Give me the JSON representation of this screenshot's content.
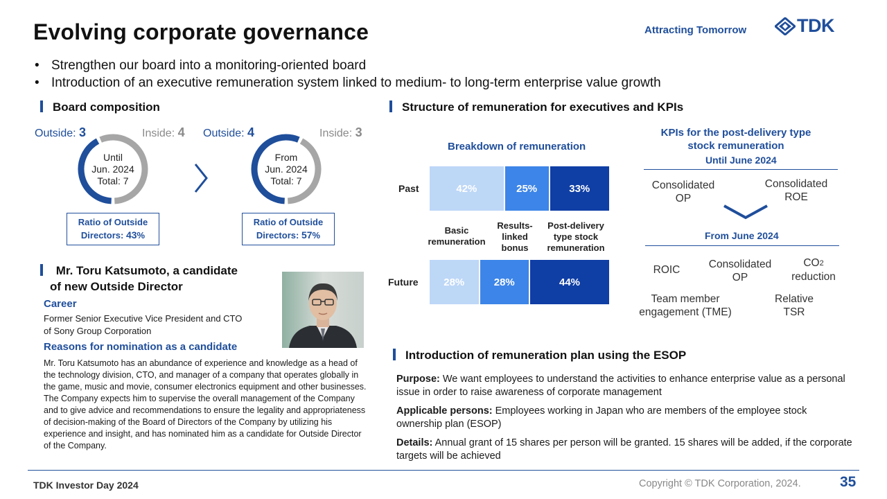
{
  "header": {
    "title": "Evolving corporate governance",
    "tagline": "Attracting Tomorrow",
    "logo_text": "TDK"
  },
  "bullets": [
    "Strengthen our board into a monitoring-oriented board",
    "Introduction of an executive remuneration system linked to medium- to long-term enterprise value growth"
  ],
  "board": {
    "heading": "Board composition",
    "before": {
      "outside_label": "Outside:",
      "outside_value": 3,
      "inside_label": "Inside:",
      "inside_value": 4,
      "center_line1": "Until",
      "center_line2": "Jun. 2024",
      "center_line3": "Total: 7",
      "ratio_line1": "Ratio of Outside",
      "ratio_line2": "Directors:",
      "ratio_value": "43",
      "ratio_unit": "%"
    },
    "after": {
      "outside_label": "Outside:",
      "outside_value": 4,
      "inside_label": "Inside:",
      "inside_value": 3,
      "center_line1": "From",
      "center_line2": "Jun. 2024",
      "center_line3": "Total: 7",
      "ratio_line1": "Ratio of Outside",
      "ratio_line2": "Directors:",
      "ratio_value": "57",
      "ratio_unit": "%"
    },
    "colors": {
      "outside": "#1f4e9b",
      "inside": "#a6a6a6"
    }
  },
  "candidate": {
    "heading_line1": "Mr. Toru Katsumoto, a candidate",
    "heading_line2": "of new Outside Director",
    "career_heading": "Career",
    "career_line1": "Former Senior Executive Vice President and CTO",
    "career_line2": "of Sony Group Corporation",
    "reasons_heading": "Reasons for nomination as a candidate",
    "reasons_text": "Mr. Toru Katsumoto has an abundance of experience and knowledge as a head of the technology division, CTO, and manager of a company that operates globally in the game, music and movie, consumer electronics equipment and other businesses. The Company expects him to supervise the overall management of the Company and to give advice and recommendations to ensure the legality and appropriateness of decision-making of the Board of Directors of the Company by utilizing his experience and insight, and has nominated him as a candidate for Outside Director of the Company."
  },
  "remuneration": {
    "heading": "Structure of remuneration for executives and KPIs"
  },
  "chart_data": {
    "type": "bar",
    "orientation": "horizontal-stacked-100",
    "title": "Breakdown of remuneration",
    "categories": [
      "Past",
      "Future"
    ],
    "series": [
      {
        "name": "Basic remuneration",
        "values": [
          42,
          28
        ],
        "color": "#bdd7f7"
      },
      {
        "name": "Results-linked bonus",
        "values": [
          25,
          28
        ],
        "color": "#3d85e8"
      },
      {
        "name": "Post-delivery type stock remuneration",
        "values": [
          33,
          44
        ],
        "color": "#0f3ea5"
      }
    ],
    "unit": "%",
    "legend_lines": [
      [
        "Basic",
        "remuneration"
      ],
      [
        "Results-",
        "linked",
        "bonus"
      ],
      [
        "Post-delivery",
        "type stock",
        "remuneration"
      ]
    ]
  },
  "kpis": {
    "title_line1": "KPIs for the post-delivery type",
    "title_line2": "stock remuneration",
    "until_label": "Until June 2024",
    "until_item1_line1": "Consolidated",
    "until_item1_line2": "OP",
    "until_item2_line1": "Consolidated",
    "until_item2_line2": "ROE",
    "from_label": "From June 2024",
    "roic": "ROIC",
    "op_line1": "Consolidated",
    "op_line2": "OP",
    "co2_prefix": "CO",
    "co2_sub": "2",
    "co2_line2": "reduction",
    "tme_line1": "Team member",
    "tme_line2": "engagement (TME)",
    "tsr_line1": "Relative",
    "tsr_line2": "TSR"
  },
  "esop": {
    "heading": "Introduction of remuneration plan using the ESOP",
    "purpose_label": "Purpose:",
    "purpose_text": " We want employees to understand the activities to enhance enterprise value as a personal issue in order to raise awareness of corporate management",
    "persons_label": "Applicable persons:",
    "persons_text": " Employees working in Japan who are members of the employee stock ownership plan (ESOP)",
    "details_label": "Details:",
    "details_text": " Annual grant of 15 shares per person will be granted. 15 shares will be added, if the corporate targets will be achieved"
  },
  "footer": {
    "left": "TDK Investor Day 2024",
    "copyright": "Copyright  © TDK Corporation, 2024.",
    "page": "35"
  }
}
